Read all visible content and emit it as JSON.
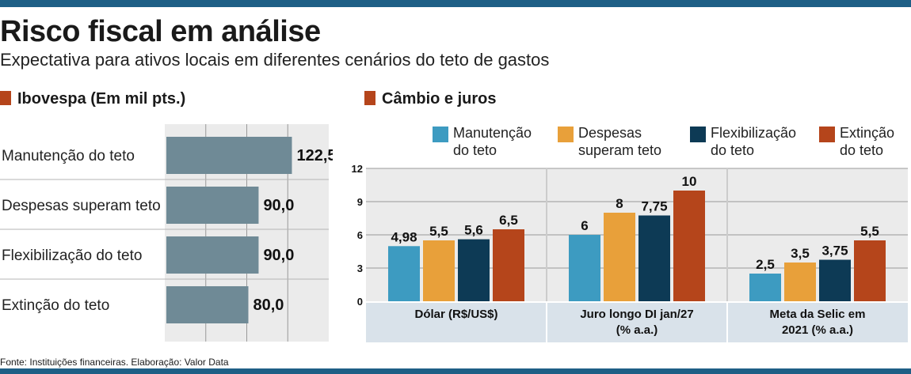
{
  "title": "Risco fiscal em análise",
  "subtitle": "Expectativa para ativos locais em diferentes cenários do teto de gastos",
  "footer": "Fonte: Instituições financeiras. Elaboração: Valor Data",
  "colors": {
    "brand_bar": "#1e5f86",
    "section_square": "#b5451b"
  },
  "chart_data": [
    {
      "type": "bar",
      "orientation": "horizontal",
      "title": "Ibovespa (Em mil pts.)",
      "categories": [
        "Manutenção do teto",
        "Despesas superam teto",
        "Flexibilização do teto",
        "Extinção do teto"
      ],
      "values": [
        122.5,
        90.0,
        90.0,
        80.0
      ],
      "value_labels": [
        "122,5",
        "90,0",
        "90,0",
        "80,0"
      ],
      "bar_color": "#6f8a96",
      "grid": true
    },
    {
      "type": "bar",
      "title": "Câmbio e juros",
      "categories": [
        [
          "Dólar (R$/US$)"
        ],
        [
          "Juro longo DI jan/27",
          "(% a.a.)"
        ],
        [
          "Meta da Selic em",
          "2021 (% a.a.)"
        ]
      ],
      "series": [
        {
          "name": [
            "Manutenção",
            "do teto"
          ],
          "color": "#3d9bc1",
          "values": [
            4.98,
            6,
            2.5
          ],
          "labels": [
            "4,98",
            "6",
            "2,5"
          ]
        },
        {
          "name": [
            "Despesas",
            "superam teto"
          ],
          "color": "#e8a03a",
          "values": [
            5.5,
            8,
            3.5
          ],
          "labels": [
            "5,5",
            "8",
            "3,5"
          ]
        },
        {
          "name": [
            "Flexibilização",
            "do teto"
          ],
          "color": "#0d3a55",
          "values": [
            5.6,
            7.75,
            3.75
          ],
          "labels": [
            "5,6",
            "7,75",
            "3,75"
          ]
        },
        {
          "name": [
            "Extinção",
            "do teto"
          ],
          "color": "#b5451b",
          "values": [
            6.5,
            10,
            5.5
          ],
          "labels": [
            "6,5",
            "10",
            "5,5"
          ]
        }
      ],
      "yticks": [
        0,
        3,
        6,
        9,
        12
      ],
      "ylim": [
        0,
        12
      ],
      "legend_position": "top",
      "grid": true
    }
  ]
}
